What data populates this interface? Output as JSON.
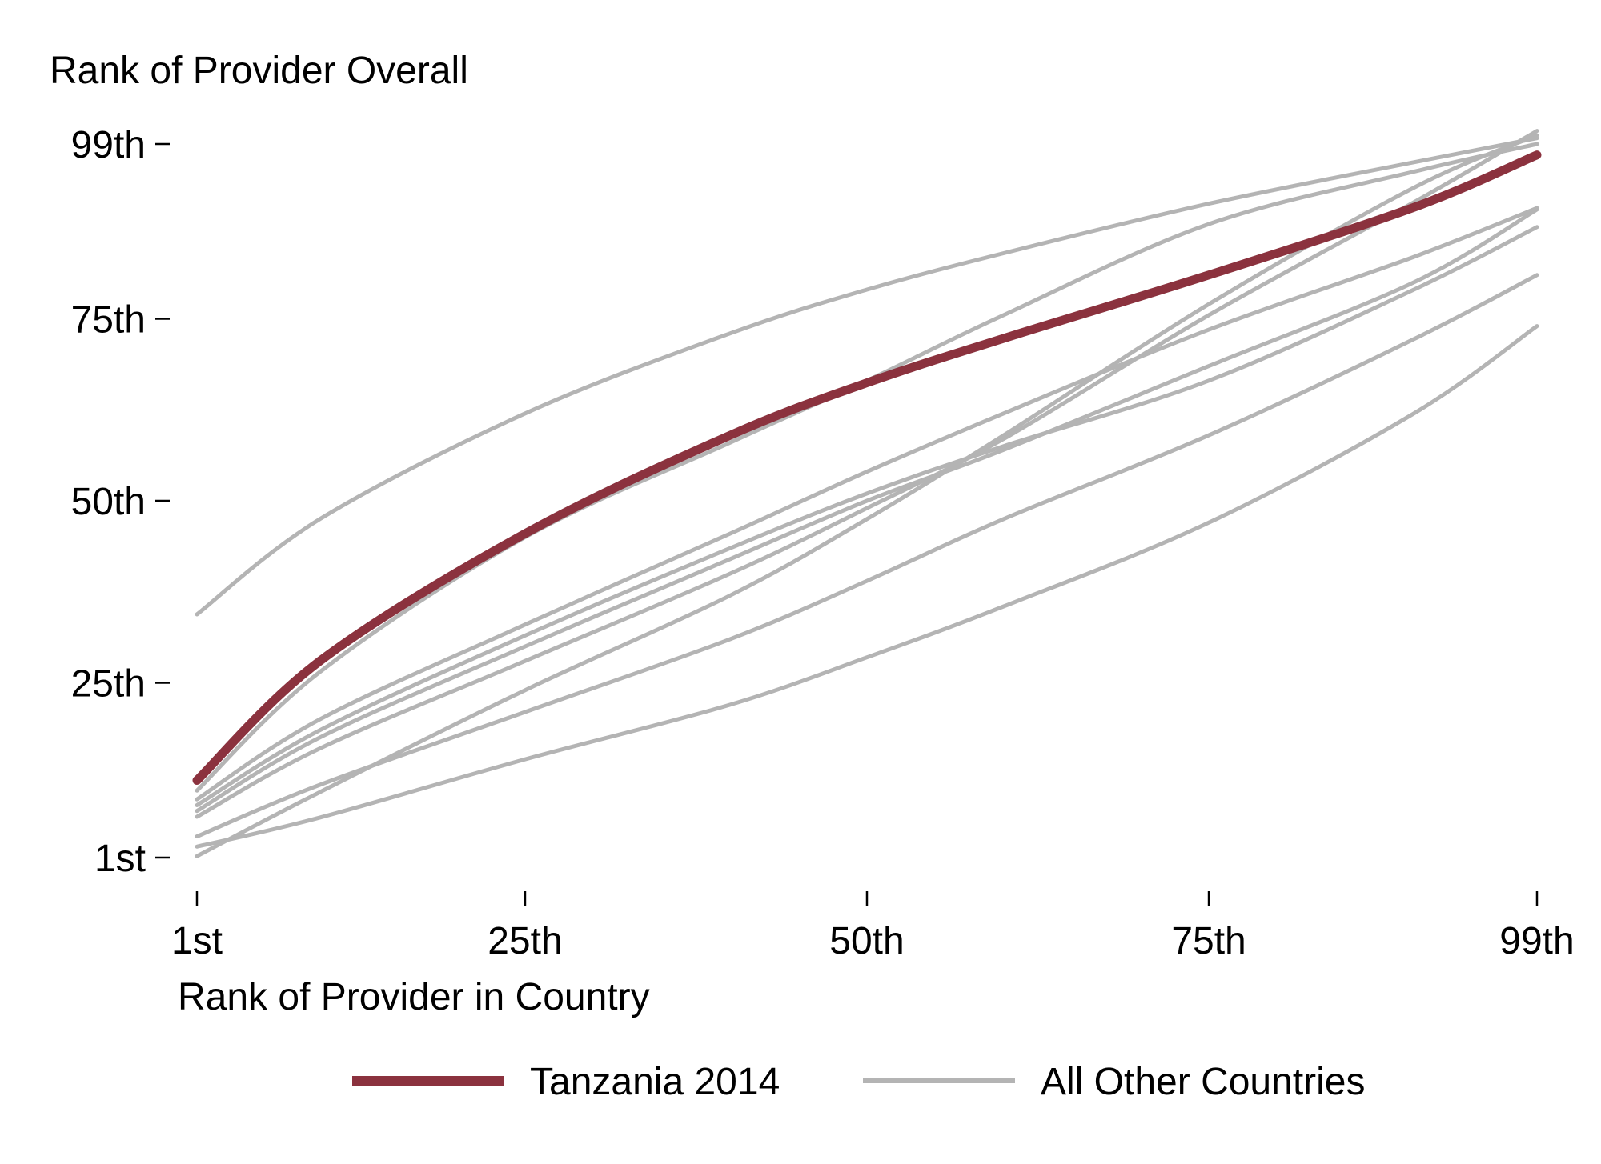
{
  "chart_data": {
    "type": "line",
    "ylabel": "Rank of Provider Overall",
    "xlabel": "Rank of Provider in Country",
    "xlim": [
      1,
      99
    ],
    "ylim": [
      1,
      99
    ],
    "x_ticks": [
      {
        "value": 1,
        "label": "1st"
      },
      {
        "value": 25,
        "label": "25th"
      },
      {
        "value": 50,
        "label": "50th"
      },
      {
        "value": 75,
        "label": "75th"
      },
      {
        "value": 99,
        "label": "99th"
      }
    ],
    "y_ticks": [
      {
        "value": 1,
        "label": "1st"
      },
      {
        "value": 25,
        "label": "25th"
      },
      {
        "value": 50,
        "label": "50th"
      },
      {
        "value": 75,
        "label": "75th"
      },
      {
        "value": 99,
        "label": "99th"
      }
    ],
    "legend": {
      "placement": "bottom",
      "entries": [
        {
          "label": "Tanzania 2014",
          "color": "#8b323e"
        },
        {
          "label": "All Other Countries",
          "color": "#b4b4b4"
        }
      ]
    },
    "highlight_series": {
      "name": "Tanzania 2014",
      "color": "#8b323e",
      "x": [
        1,
        10,
        25,
        40,
        50,
        60,
        75,
        90,
        99
      ],
      "y": [
        11.6,
        28,
        45.5,
        59,
        66.2,
        72.3,
        81,
        90.3,
        97.5
      ]
    },
    "series": [
      {
        "name": "All Other Countries",
        "x": [
          1,
          10,
          25,
          40,
          50,
          60,
          75,
          90,
          99
        ],
        "y": [
          34.4,
          47.5,
          62,
          73,
          79,
          84,
          90.8,
          96.5,
          99.8
        ]
      },
      {
        "name": "All Other Countries",
        "x": [
          1,
          10,
          25,
          40,
          50,
          60,
          75,
          90,
          99
        ],
        "y": [
          10.2,
          26.5,
          45,
          58,
          66.5,
          75.5,
          88,
          95.2,
          99
        ]
      },
      {
        "name": "All Other Countries",
        "x": [
          1,
          10,
          25,
          40,
          50,
          60,
          75,
          90,
          99
        ],
        "y": [
          9,
          20,
          33,
          45.5,
          54,
          62,
          73.5,
          83.5,
          90.2
        ]
      },
      {
        "name": "All Other Countries",
        "x": [
          1,
          10,
          25,
          40,
          50,
          60,
          75,
          90,
          99
        ],
        "y": [
          8.2,
          18.5,
          31.5,
          43.5,
          51,
          57.5,
          66.5,
          79,
          87.6
        ]
      },
      {
        "name": "All Other Countries",
        "x": [
          1,
          10,
          25,
          40,
          50,
          60,
          75,
          90,
          99
        ],
        "y": [
          7.4,
          17.5,
          30,
          42,
          50,
          57,
          68.5,
          80,
          90
        ]
      },
      {
        "name": "All Other Countries",
        "x": [
          1,
          10,
          25,
          40,
          50,
          60,
          75,
          90,
          99
        ],
        "y": [
          6.6,
          16,
          28,
          40,
          49,
          58.5,
          75.5,
          91,
          100.8
        ]
      },
      {
        "name": "All Other Countries",
        "x": [
          1,
          10,
          25,
          40,
          50,
          60,
          75,
          90,
          99
        ],
        "y": [
          3.9,
          11,
          21,
          31,
          39,
          47.5,
          59,
          72.2,
          81
        ]
      },
      {
        "name": "All Other Countries",
        "x": [
          1,
          10,
          25,
          40,
          50,
          60,
          75,
          90,
          99
        ],
        "y": [
          2.5,
          6.5,
          14.5,
          22,
          28.5,
          35.5,
          47,
          62,
          74
        ]
      },
      {
        "name": "All Other Countries",
        "x": [
          1,
          10,
          25,
          40,
          50,
          60,
          75,
          90,
          99
        ],
        "y": [
          1.2,
          10,
          24,
          37,
          47.5,
          59,
          77,
          93,
          100.2
        ]
      }
    ]
  }
}
